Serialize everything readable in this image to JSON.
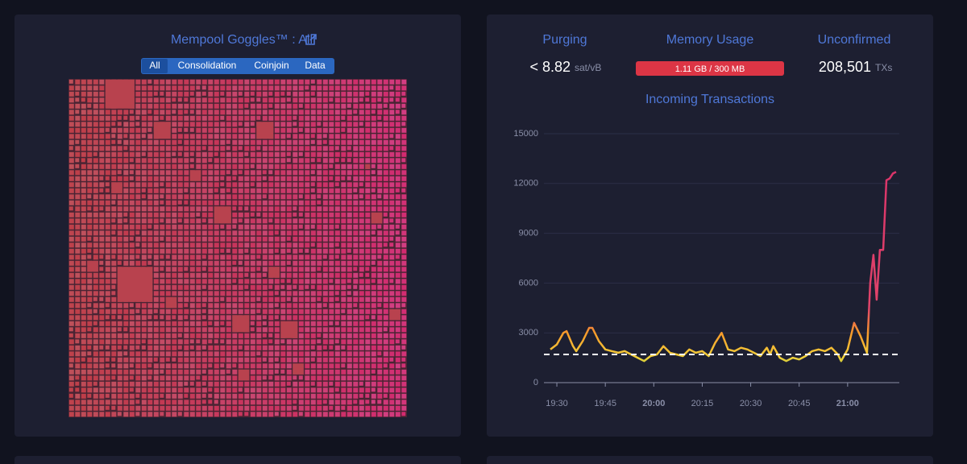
{
  "goggles": {
    "title": "Mempool Goggles™ : All",
    "tabs": [
      "All",
      "Consolidation",
      "Coinjoin",
      "Data"
    ],
    "active_tab": 0
  },
  "stats": {
    "purging": {
      "label": "Purging",
      "value": "< 8.82",
      "unit": "sat/vB"
    },
    "memory": {
      "label": "Memory Usage",
      "value": "1.11 GB / 300 MB"
    },
    "unconfirmed": {
      "label": "Unconfirmed",
      "value": "208,501",
      "unit": "TXs"
    }
  },
  "chart_data": {
    "type": "line",
    "title": "Incoming Transactions",
    "x": [
      "19:28",
      "19:30",
      "19:32",
      "19:33",
      "19:35",
      "19:36",
      "19:38",
      "19:40",
      "19:41",
      "19:43",
      "19:45",
      "19:47",
      "19:49",
      "19:51",
      "19:53",
      "19:55",
      "19:57",
      "19:59",
      "20:01",
      "20:03",
      "20:05",
      "20:07",
      "20:09",
      "20:11",
      "20:13",
      "20:15",
      "20:17",
      "20:19",
      "20:21",
      "20:23",
      "20:25",
      "20:27",
      "20:29",
      "20:31",
      "20:33",
      "20:35",
      "20:36",
      "20:37",
      "20:39",
      "20:41",
      "20:43",
      "20:45",
      "20:47",
      "20:49",
      "20:51",
      "20:53",
      "20:55",
      "20:57",
      "20:58",
      "21:00",
      "21:02",
      "21:04",
      "21:06",
      "21:07",
      "21:08",
      "21:09",
      "21:10",
      "21:11",
      "21:12",
      "21:13",
      "21:14",
      "21:15"
    ],
    "values": [
      2000,
      2300,
      3000,
      3100,
      2200,
      1900,
      2500,
      3300,
      3300,
      2500,
      2000,
      1900,
      1800,
      1900,
      1700,
      1500,
      1300,
      1600,
      1700,
      2200,
      1800,
      1700,
      1600,
      2000,
      1800,
      1900,
      1600,
      2400,
      3000,
      2000,
      1900,
      2100,
      2000,
      1800,
      1600,
      2100,
      1700,
      2200,
      1500,
      1300,
      1500,
      1400,
      1600,
      1900,
      2000,
      1900,
      2100,
      1700,
      1300,
      2000,
      3600,
      2800,
      1800,
      6000,
      7700,
      5000,
      8000,
      8000,
      12200,
      12300,
      12600,
      12700
    ],
    "reference_value": 1700,
    "xlim": [
      "19:26",
      "21:16"
    ],
    "xticks": [
      "19:30",
      "19:45",
      "20:00",
      "20:15",
      "20:30",
      "20:45",
      "21:00"
    ],
    "ylim": [
      0,
      15000
    ],
    "yticks": [
      0,
      3000,
      6000,
      9000,
      12000,
      15000
    ],
    "grid": true
  }
}
